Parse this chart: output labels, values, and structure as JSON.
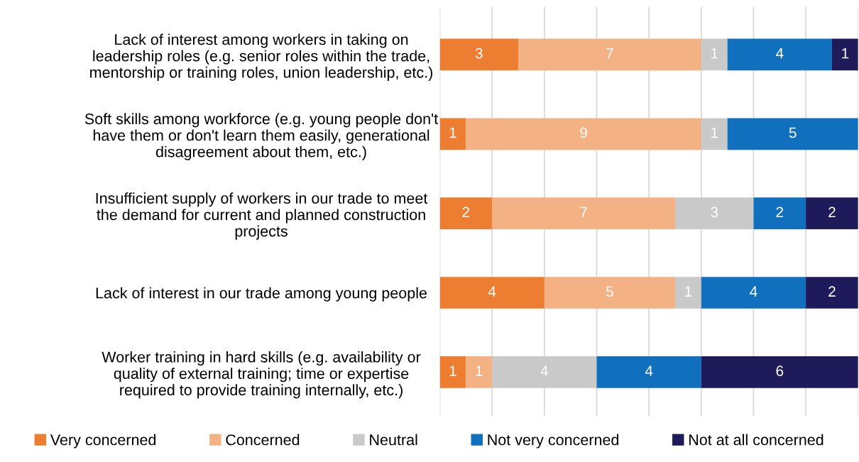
{
  "chart_data": {
    "type": "bar",
    "orientation": "horizontal",
    "stacked": true,
    "categories": [
      "Lack of interest among workers in taking on\nleadership roles (e.g. senior roles within the trade,\nmentorship or training roles, union leadership, etc.)",
      "Soft skills among workforce (e.g. young people don't\nhave them or don't learn them easily, generational\ndisagreement about them, etc.)",
      "Insufficient supply of workers in our trade to meet\nthe demand for current and planned construction\nprojects",
      "Lack of interest in our trade among young people",
      "Worker training in hard skills (e.g. availability or\nquality of external training; time or expertise\nrequired to provide training internally, etc.)"
    ],
    "series": [
      {
        "name": "Very concerned",
        "color": "#ed7d31",
        "values": [
          3,
          1,
          2,
          4,
          1
        ]
      },
      {
        "name": "Concerned",
        "color": "#f4b183",
        "values": [
          7,
          9,
          7,
          5,
          1
        ]
      },
      {
        "name": "Neutral",
        "color": "#c9c9c9",
        "values": [
          1,
          1,
          3,
          1,
          4
        ]
      },
      {
        "name": "Not very concerned",
        "color": "#1170be",
        "values": [
          4,
          5,
          2,
          4,
          4
        ]
      },
      {
        "name": "Not at all concerned",
        "color": "#1f1a5a",
        "values": [
          1,
          null,
          2,
          2,
          6
        ]
      }
    ],
    "xlim": [
      0,
      16
    ],
    "xticks": [
      {
        "value": 0,
        "label": null
      },
      {
        "value": 2,
        "label": null
      },
      {
        "value": 4,
        "label": null
      },
      {
        "value": 6,
        "label": null
      },
      {
        "value": 8,
        "label": null
      },
      {
        "value": 10,
        "label": null
      },
      {
        "value": 12,
        "label": null
      },
      {
        "value": 14,
        "label": null
      },
      {
        "value": 16,
        "label": null
      }
    ],
    "tick_labels": "y",
    "grid": "x",
    "legend": "bottom",
    "data_labels": true
  }
}
